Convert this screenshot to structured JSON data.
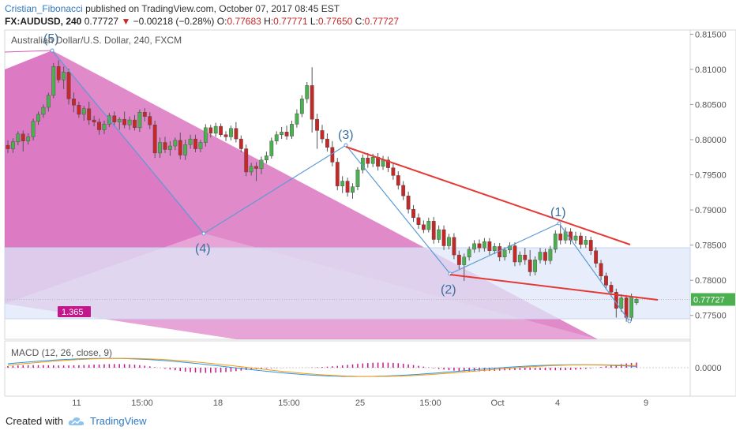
{
  "header": {
    "author": "Cristian_Fibonacci",
    "published_text": "published on TradingView.com, October 07, 2017 08:45 EST",
    "symbol": "FX:AUDUSD, 240",
    "last": "0.77727",
    "change": "−0.00218 (−0.28%)",
    "o_label": "O:",
    "o_val": "0.77683",
    "h_label": "H:",
    "h_val": "0.77771",
    "l_label": "L:",
    "l_val": "0.77650",
    "c_label": "C:",
    "c_val": "0.77727"
  },
  "main_title": "Australian Dollar/U.S. Dollar, 240, FXCM",
  "macd_title": "MACD (12, 26, close, 9)",
  "footer": {
    "created_with": "Created with",
    "brand": "TradingView"
  },
  "colors": {
    "up": "#4caf50",
    "down": "#c62828",
    "pattern": "#d359b4",
    "wave": "#5b9bd5",
    "trend": "#e53935",
    "box": "#dfe7f8",
    "badge": "#c2188b",
    "price_tag": "#4caf50"
  },
  "chart_data": {
    "type": "candlestick",
    "title": "Australian Dollar/U.S. Dollar, 240, FXCM",
    "price_axis": [
      "0.81500",
      "0.81000",
      "0.80500",
      "0.80000",
      "0.79500",
      "0.79000",
      "0.78500",
      "0.78000",
      "0.77500"
    ],
    "ylim": [
      0.7716,
      0.8156
    ],
    "current_price": "0.77727",
    "x_ticks": [
      "11",
      "15:00",
      "18",
      "15:00",
      "25",
      "15:00",
      "Oct",
      "4",
      "9"
    ],
    "wave_labels": [
      "(5)",
      "(4)",
      "(3)",
      "(2)",
      "(1)"
    ],
    "badge": "1.365",
    "macd_axis": [
      "0.0000"
    ],
    "series": [
      {
        "name": "candles",
        "values": [
          [
            0.7992,
            0.7999,
            0.7981,
            0.7987
          ],
          [
            0.7987,
            0.8002,
            0.7981,
            0.7997
          ],
          [
            0.7997,
            0.8012,
            0.7992,
            0.8008
          ],
          [
            0.8008,
            0.8013,
            0.7983,
            0.7998
          ],
          [
            0.7998,
            0.8009,
            0.7993,
            0.8004
          ],
          [
            0.8004,
            0.803,
            0.7999,
            0.8026
          ],
          [
            0.8026,
            0.804,
            0.8021,
            0.8036
          ],
          [
            0.8036,
            0.805,
            0.8031,
            0.8046
          ],
          [
            0.8046,
            0.8067,
            0.804,
            0.8063
          ],
          [
            0.8063,
            0.8109,
            0.8059,
            0.8104
          ],
          [
            0.8104,
            0.8113,
            0.8081,
            0.8085
          ],
          [
            0.8085,
            0.8104,
            0.8072,
            0.8096
          ],
          [
            0.8096,
            0.8101,
            0.805,
            0.8058
          ],
          [
            0.8058,
            0.8067,
            0.8039,
            0.8049
          ],
          [
            0.8049,
            0.8054,
            0.8031,
            0.8036
          ],
          [
            0.8036,
            0.8048,
            0.8027,
            0.8044
          ],
          [
            0.8044,
            0.8054,
            0.8021,
            0.8028
          ],
          [
            0.8028,
            0.8034,
            0.8019,
            0.8025
          ],
          [
            0.8025,
            0.803,
            0.8007,
            0.8014
          ],
          [
            0.8014,
            0.8027,
            0.8008,
            0.8022
          ],
          [
            0.8022,
            0.8038,
            0.8018,
            0.8034
          ],
          [
            0.8034,
            0.804,
            0.8019,
            0.8025
          ],
          [
            0.8025,
            0.8032,
            0.8014,
            0.8029
          ],
          [
            0.8029,
            0.804,
            0.8016,
            0.8021
          ],
          [
            0.8021,
            0.8033,
            0.8014,
            0.8028
          ],
          [
            0.8028,
            0.8035,
            0.8013,
            0.8017
          ],
          [
            0.8017,
            0.8043,
            0.8011,
            0.8039
          ],
          [
            0.8039,
            0.8045,
            0.8026,
            0.8033
          ],
          [
            0.8033,
            0.8039,
            0.8015,
            0.8021
          ],
          [
            0.8021,
            0.8027,
            0.7974,
            0.7981
          ],
          [
            0.7981,
            0.8003,
            0.7974,
            0.7996
          ],
          [
            0.7996,
            0.8004,
            0.7981,
            0.7986
          ],
          [
            0.7986,
            0.7998,
            0.7977,
            0.7991
          ],
          [
            0.7991,
            0.8003,
            0.7985,
            0.7999
          ],
          [
            0.7999,
            0.801,
            0.7972,
            0.7978
          ],
          [
            0.7978,
            0.8,
            0.7971,
            0.7993
          ],
          [
            0.7993,
            0.8007,
            0.7987,
            0.8001
          ],
          [
            0.8001,
            0.8007,
            0.7982,
            0.7987
          ],
          [
            0.7987,
            0.8,
            0.7982,
            0.7996
          ],
          [
            0.7996,
            0.8022,
            0.799,
            0.8017
          ],
          [
            0.8017,
            0.8021,
            0.8003,
            0.8009
          ],
          [
            0.8009,
            0.8024,
            0.8004,
            0.8019
          ],
          [
            0.8019,
            0.8023,
            0.8004,
            0.8007
          ],
          [
            0.8007,
            0.8012,
            0.7998,
            0.8004
          ],
          [
            0.8004,
            0.802,
            0.7999,
            0.8016
          ],
          [
            0.8016,
            0.8025,
            0.7996,
            0.8001
          ],
          [
            0.8001,
            0.8006,
            0.7982,
            0.7987
          ],
          [
            0.7987,
            0.7993,
            0.7948,
            0.7954
          ],
          [
            0.7954,
            0.7967,
            0.7949,
            0.7962
          ],
          [
            0.7962,
            0.7968,
            0.7941,
            0.7959
          ],
          [
            0.7959,
            0.7976,
            0.7951,
            0.7971
          ],
          [
            0.7971,
            0.7983,
            0.7966,
            0.7977
          ],
          [
            0.7977,
            0.8003,
            0.7973,
            0.7998
          ],
          [
            0.7998,
            0.8012,
            0.7993,
            0.8007
          ],
          [
            0.8007,
            0.8018,
            0.8001,
            0.8011
          ],
          [
            0.8011,
            0.802,
            0.8,
            0.8005
          ],
          [
            0.8005,
            0.8027,
            0.8001,
            0.8022
          ],
          [
            0.8022,
            0.8043,
            0.8017,
            0.8037
          ],
          [
            0.8037,
            0.8063,
            0.8032,
            0.8058
          ],
          [
            0.8058,
            0.8082,
            0.8052,
            0.8077
          ],
          [
            0.8077,
            0.8103,
            0.801,
            0.8029
          ],
          [
            0.8029,
            0.8037,
            0.7987,
            0.8013
          ],
          [
            0.8013,
            0.8021,
            0.7995,
            0.8001
          ],
          [
            0.8001,
            0.8009,
            0.7983,
            0.7989
          ],
          [
            0.7989,
            0.7998,
            0.7962,
            0.7968
          ],
          [
            0.7968,
            0.7974,
            0.7928,
            0.7934
          ],
          [
            0.7934,
            0.7948,
            0.7924,
            0.7941
          ],
          [
            0.7941,
            0.7946,
            0.7919,
            0.7925
          ],
          [
            0.7925,
            0.7938,
            0.7916,
            0.7933
          ],
          [
            0.7933,
            0.7961,
            0.7928,
            0.7957
          ],
          [
            0.7957,
            0.7979,
            0.7952,
            0.7974
          ],
          [
            0.7974,
            0.7981,
            0.796,
            0.7966
          ],
          [
            0.7966,
            0.798,
            0.7961,
            0.7975
          ],
          [
            0.7975,
            0.7981,
            0.7956,
            0.7962
          ],
          [
            0.7962,
            0.7977,
            0.7957,
            0.7971
          ],
          [
            0.7971,
            0.7976,
            0.7954,
            0.796
          ],
          [
            0.796,
            0.7966,
            0.7943,
            0.7949
          ],
          [
            0.7949,
            0.7955,
            0.7929,
            0.7935
          ],
          [
            0.7935,
            0.7941,
            0.7914,
            0.792
          ],
          [
            0.792,
            0.7926,
            0.7895,
            0.7901
          ],
          [
            0.7901,
            0.7907,
            0.7883,
            0.7889
          ],
          [
            0.7889,
            0.7895,
            0.7873,
            0.7879
          ],
          [
            0.7879,
            0.7885,
            0.7867,
            0.7872
          ],
          [
            0.7872,
            0.7889,
            0.7868,
            0.7884
          ],
          [
            0.7884,
            0.789,
            0.7852,
            0.7858
          ],
          [
            0.7858,
            0.7878,
            0.7853,
            0.7872
          ],
          [
            0.7872,
            0.7878,
            0.7843,
            0.7849
          ],
          [
            0.7849,
            0.7866,
            0.7844,
            0.7861
          ],
          [
            0.7861,
            0.7867,
            0.783,
            0.7836
          ],
          [
            0.7836,
            0.7842,
            0.7816,
            0.7822
          ],
          [
            0.7822,
            0.7838,
            0.7799,
            0.7833
          ],
          [
            0.7833,
            0.7848,
            0.7828,
            0.7844
          ],
          [
            0.7844,
            0.7857,
            0.7839,
            0.7852
          ],
          [
            0.7852,
            0.7858,
            0.784,
            0.7846
          ],
          [
            0.7846,
            0.786,
            0.7841,
            0.7855
          ],
          [
            0.7855,
            0.786,
            0.7836,
            0.7842
          ],
          [
            0.7842,
            0.7853,
            0.7837,
            0.7848
          ],
          [
            0.7848,
            0.7853,
            0.7827,
            0.7833
          ],
          [
            0.7833,
            0.7847,
            0.7828,
            0.7843
          ],
          [
            0.7843,
            0.7854,
            0.7838,
            0.7849
          ],
          [
            0.7849,
            0.7854,
            0.782,
            0.7826
          ],
          [
            0.7826,
            0.7841,
            0.7821,
            0.7836
          ],
          [
            0.7836,
            0.7846,
            0.7822,
            0.7829
          ],
          [
            0.7829,
            0.7843,
            0.7806,
            0.7812
          ],
          [
            0.7812,
            0.7834,
            0.7807,
            0.7829
          ],
          [
            0.7829,
            0.7846,
            0.7824,
            0.784
          ],
          [
            0.784,
            0.7845,
            0.7822,
            0.7828
          ],
          [
            0.7828,
            0.7849,
            0.7823,
            0.7844
          ],
          [
            0.7844,
            0.7871,
            0.7839,
            0.7866
          ],
          [
            0.7866,
            0.7879,
            0.7851,
            0.7857
          ],
          [
            0.7857,
            0.7875,
            0.7852,
            0.7869
          ],
          [
            0.7869,
            0.7874,
            0.7851,
            0.7857
          ],
          [
            0.7857,
            0.7869,
            0.7852,
            0.7863
          ],
          [
            0.7863,
            0.7868,
            0.7845,
            0.7851
          ],
          [
            0.7851,
            0.7863,
            0.7846,
            0.7857
          ],
          [
            0.7857,
            0.7862,
            0.7836,
            0.7842
          ],
          [
            0.7842,
            0.7847,
            0.7818,
            0.7824
          ],
          [
            0.7824,
            0.7829,
            0.78,
            0.7806
          ],
          [
            0.7806,
            0.7811,
            0.7787,
            0.7793
          ],
          [
            0.7793,
            0.7798,
            0.7777,
            0.7783
          ],
          [
            0.7783,
            0.7788,
            0.7747,
            0.776
          ],
          [
            0.776,
            0.778,
            0.7755,
            0.7775
          ],
          [
            0.7775,
            0.7779,
            0.7741,
            0.7747
          ],
          [
            0.7747,
            0.7781,
            0.7742,
            0.7776
          ],
          [
            0.7768,
            0.7777,
            0.7765,
            0.7773
          ]
        ]
      }
    ]
  }
}
